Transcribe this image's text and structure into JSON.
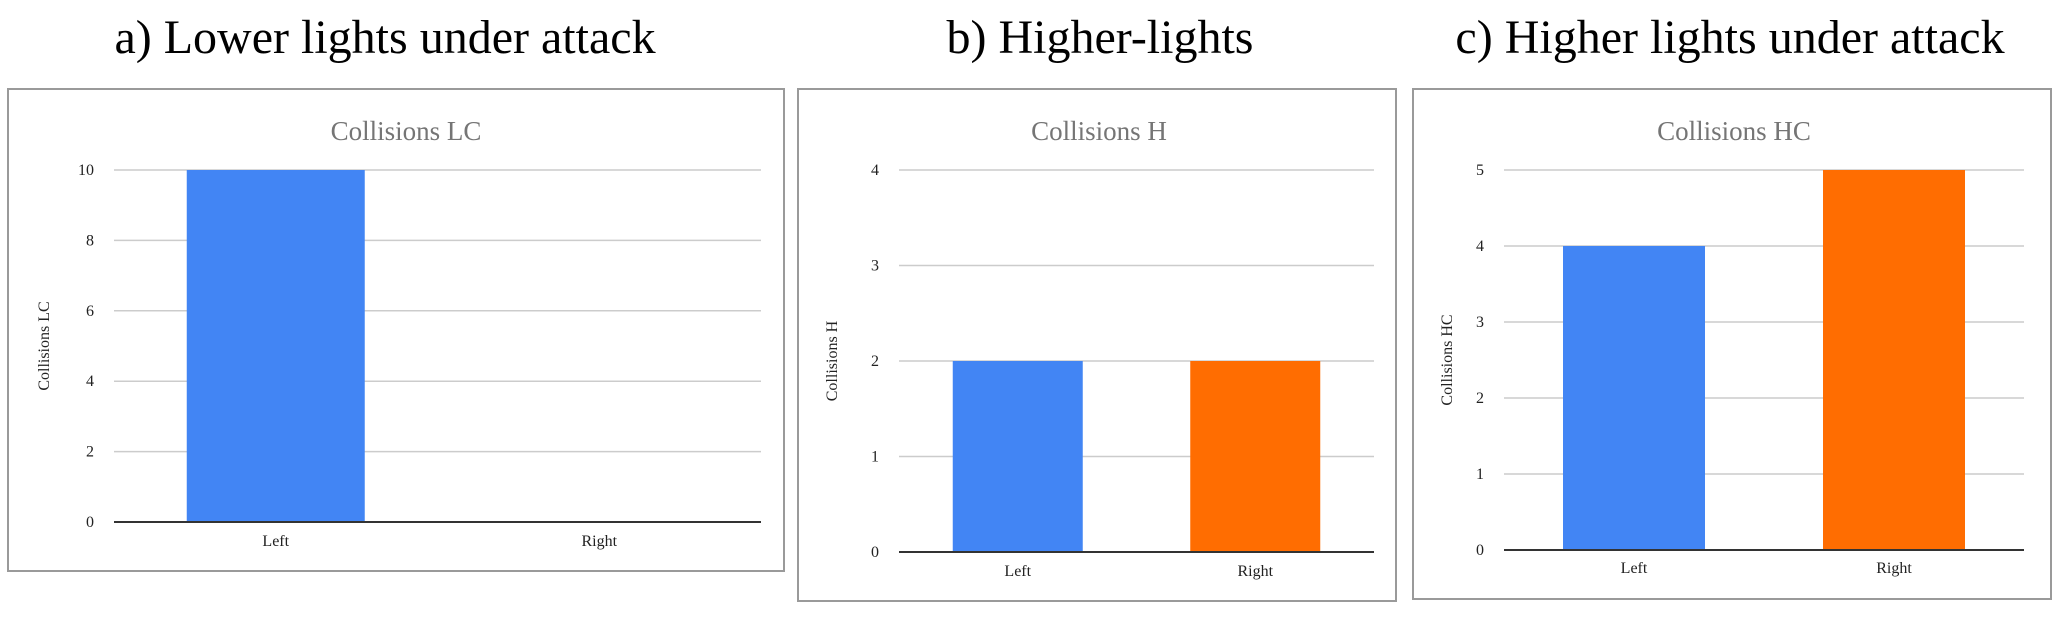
{
  "panels": [
    {
      "caption": "a) Lower lights under attack"
    },
    {
      "caption": "b) Higher-lights"
    },
    {
      "caption": "c) Higher lights under attack"
    }
  ],
  "colors": {
    "left": "#4285f4",
    "right": "#ff6d01",
    "grid": "#cccccc",
    "axis": "#333333"
  },
  "chart_data": [
    {
      "type": "bar",
      "title": "Collisions LC",
      "ylabel": "Collisions LC",
      "xlabel": "",
      "categories": [
        "Left",
        "Right"
      ],
      "values": [
        10,
        0
      ],
      "ylim": [
        0,
        10
      ],
      "yticks": [
        0,
        2,
        4,
        6,
        8,
        10
      ],
      "grid": true
    },
    {
      "type": "bar",
      "title": "Collisions H",
      "ylabel": "Collisions H",
      "xlabel": "",
      "categories": [
        "Left",
        "Right"
      ],
      "values": [
        2,
        2
      ],
      "ylim": [
        0,
        4
      ],
      "yticks": [
        0,
        1,
        2,
        3,
        4
      ],
      "grid": true
    },
    {
      "type": "bar",
      "title": "Collisions HC",
      "ylabel": "Collisions HC",
      "xlabel": "",
      "categories": [
        "Left",
        "Right"
      ],
      "values": [
        4,
        5
      ],
      "ylim": [
        0,
        5
      ],
      "yticks": [
        0,
        1,
        2,
        3,
        4,
        5
      ],
      "grid": true
    }
  ]
}
